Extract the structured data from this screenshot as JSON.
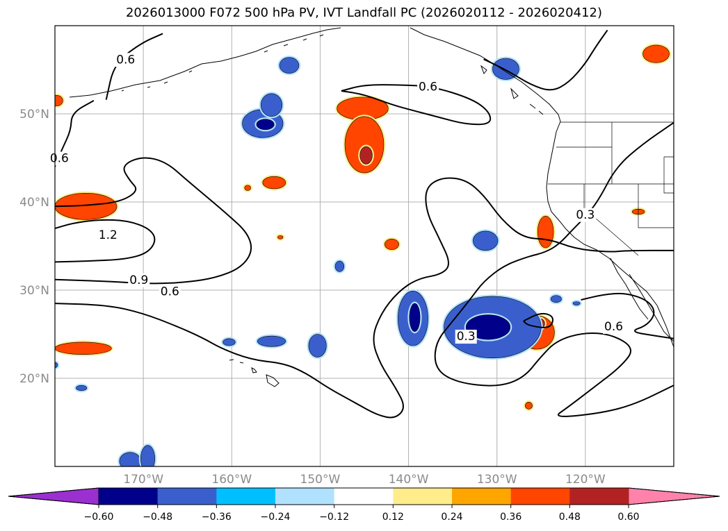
{
  "chart_data": {
    "type": "heatmap",
    "title": "2026013000 F072 500 hPa PV, IVT Landfall PC (2026020112 - 2026020412)",
    "projection": "PlateCarree",
    "lon_range": [
      -180,
      -110
    ],
    "lat_range": [
      10,
      60
    ],
    "lat_ticks": [
      {
        "lat": 50,
        "label": "50°N"
      },
      {
        "lat": 40,
        "label": "40°N"
      },
      {
        "lat": 30,
        "label": "30°N"
      },
      {
        "lat": 20,
        "label": "20°N"
      }
    ],
    "lon_ticks": [
      {
        "lon": -170,
        "label": "170°W"
      },
      {
        "lon": -160,
        "label": "160°W"
      },
      {
        "lon": -150,
        "label": "150°W"
      },
      {
        "lon": -140,
        "label": "140°W"
      },
      {
        "lon": -130,
        "label": "130°W"
      },
      {
        "lon": -120,
        "label": "120°W"
      }
    ],
    "grid": true,
    "colorbar": {
      "orientation": "horizontal",
      "extend": "both",
      "ticks": [
        "−0.60",
        "−0.48",
        "−0.36",
        "−0.24",
        "−0.12",
        "0.12",
        "0.24",
        "0.36",
        "0.48",
        "0.60"
      ],
      "colors": [
        "#9b30d0",
        "#00008b",
        "#3a5fcd",
        "#00bfff",
        "#b0e2ff",
        "#ffffff",
        "#ffec8b",
        "#ffa500",
        "#ff4500",
        "#b22222",
        "#ff82ab"
      ]
    },
    "contour_labels": [
      {
        "text": "0.6",
        "lon": -172.0,
        "lat": 56.2
      },
      {
        "text": "0.6",
        "lon": -179.5,
        "lat": 45.0
      },
      {
        "text": "1.2",
        "lon": -174.0,
        "lat": 36.3
      },
      {
        "text": "0.9",
        "lon": -170.5,
        "lat": 31.2
      },
      {
        "text": "0.6",
        "lon": -167.0,
        "lat": 29.9
      },
      {
        "text": "0.6",
        "lon": -137.8,
        "lat": 53.1
      },
      {
        "text": "0.3",
        "lon": -120.0,
        "lat": 38.6
      },
      {
        "text": "0.3",
        "lon": -133.5,
        "lat": 24.8
      },
      {
        "text": "0.6",
        "lon": -116.8,
        "lat": 25.9
      }
    ],
    "pv_contours": [
      {
        "level": 0.6,
        "points": [
          [
            -174.2,
            51.6
          ],
          [
            -173.3,
            55.7
          ],
          [
            -170.3,
            58.0
          ],
          [
            -167.8,
            59.1
          ]
        ]
      },
      {
        "level": 0.6,
        "points": [
          [
            -180.0,
            44.0
          ],
          [
            -179.2,
            46.0
          ],
          [
            -178.2,
            48.1
          ],
          [
            -178.1,
            50.1
          ],
          [
            -175.6,
            51.5
          ]
        ]
      },
      {
        "level": 0.6,
        "points": [
          [
            -180.0,
            28.5
          ],
          [
            -174.0,
            28.3
          ],
          [
            -170.1,
            27.4
          ],
          [
            -166.2,
            25.9
          ],
          [
            -163.3,
            24.6
          ],
          [
            -161.2,
            23.4
          ],
          [
            -157.8,
            22.1
          ],
          [
            -154.1,
            21.7
          ],
          [
            -151.6,
            20.6
          ],
          [
            -149.1,
            18.9
          ],
          [
            -146.0,
            17.2
          ],
          [
            -143.5,
            15.8
          ],
          [
            -141.5,
            15.4
          ],
          [
            -140.3,
            16.7
          ],
          [
            -141.5,
            19.0
          ],
          [
            -143.2,
            21.6
          ],
          [
            -144.2,
            24.5
          ],
          [
            -143.1,
            27.4
          ],
          [
            -141.2,
            29.8
          ],
          [
            -139.0,
            31.3
          ],
          [
            -136.2,
            31.8
          ],
          [
            -135.2,
            33.0
          ],
          [
            -136.5,
            35.8
          ],
          [
            -138.0,
            38.9
          ],
          [
            -138.1,
            41.6
          ],
          [
            -136.3,
            42.8
          ],
          [
            -133.6,
            42.6
          ],
          [
            -131.5,
            40.8
          ],
          [
            -129.5,
            38.0
          ],
          [
            -127.0,
            35.9
          ],
          [
            -124.1,
            35.8
          ],
          [
            -121.2,
            34.7
          ],
          [
            -117.5,
            34.3
          ],
          [
            -115.0,
            34.5
          ],
          [
            -110.0,
            34.5
          ]
        ]
      },
      {
        "level": 0.9,
        "points": [
          [
            -180.0,
            31.2
          ],
          [
            -174.1,
            31.0
          ],
          [
            -169.0,
            30.7
          ],
          [
            -165.0,
            30.9
          ],
          [
            -161.8,
            31.4
          ],
          [
            -159.0,
            32.5
          ],
          [
            -157.6,
            34.4
          ],
          [
            -158.2,
            36.5
          ],
          [
            -160.5,
            38.6
          ],
          [
            -162.6,
            40.4
          ],
          [
            -165.1,
            42.5
          ],
          [
            -167.5,
            44.6
          ],
          [
            -170.2,
            45.2
          ],
          [
            -172.5,
            44.1
          ],
          [
            -171.6,
            42.5
          ],
          [
            -170.5,
            41.3
          ],
          [
            -172.6,
            40.0
          ],
          [
            -176.5,
            39.6
          ],
          [
            -180.0,
            39.5
          ]
        ]
      },
      {
        "level": 1.2,
        "points": [
          [
            -180.0,
            33.2
          ],
          [
            -176.0,
            33.3
          ],
          [
            -172.0,
            33.5
          ],
          [
            -169.5,
            34.2
          ],
          [
            -168.5,
            35.7
          ],
          [
            -169.3,
            37.0
          ],
          [
            -171.8,
            37.9
          ],
          [
            -175.0,
            38.0
          ],
          [
            -178.0,
            37.6
          ],
          [
            -180.0,
            37.0
          ]
        ]
      },
      {
        "level": 0.6,
        "points": [
          [
            -147.6,
            52.6
          ],
          [
            -145.0,
            53.3
          ],
          [
            -141.0,
            53.3
          ],
          [
            -137.3,
            53.1
          ],
          [
            -132.8,
            51.7
          ],
          [
            -130.8,
            50.2
          ],
          [
            -130.7,
            48.8
          ],
          [
            -133.5,
            48.8
          ],
          [
            -136.5,
            49.6
          ],
          [
            -139.2,
            50.3
          ],
          [
            -141.8,
            51.0
          ],
          [
            -145.0,
            52.2
          ],
          [
            -147.6,
            52.6
          ]
        ]
      },
      {
        "level": 0.6,
        "points": [
          [
            -131.5,
            56.2
          ],
          [
            -128.8,
            54.9
          ],
          [
            -126.2,
            53.3
          ],
          [
            -123.8,
            52.5
          ],
          [
            -121.8,
            53.6
          ],
          [
            -120.0,
            55.7
          ],
          [
            -118.9,
            57.5
          ],
          [
            -117.5,
            59.5
          ]
        ]
      },
      {
        "level": 0.3,
        "points": [
          [
            -110.0,
            49.0
          ],
          [
            -113.5,
            46.6
          ],
          [
            -116.5,
            44.0
          ],
          [
            -118.5,
            40.2
          ],
          [
            -120.0,
            38.3
          ],
          [
            -121.5,
            36.8
          ],
          [
            -123.0,
            35.2
          ],
          [
            -124.5,
            34.3
          ],
          [
            -126.5,
            33.8
          ],
          [
            -129.2,
            32.8
          ],
          [
            -131.5,
            31.0
          ],
          [
            -133.0,
            29.0
          ],
          [
            -135.0,
            26.5
          ],
          [
            -137.0,
            24.0
          ],
          [
            -137.0,
            21.0
          ],
          [
            -134.5,
            19.5
          ],
          [
            -130.0,
            19.0
          ],
          [
            -127.0,
            20.0
          ],
          [
            -125.0,
            22.5
          ],
          [
            -123.2,
            24.3
          ],
          [
            -120.2,
            25.2
          ],
          [
            -117.0,
            25.0
          ],
          [
            -114.4,
            23.4
          ],
          [
            -115.9,
            21.4
          ],
          [
            -119.0,
            19.0
          ],
          [
            -122.0,
            16.7
          ],
          [
            -123.7,
            15.5
          ],
          [
            -118.5,
            16.0
          ],
          [
            -114.5,
            17.0
          ],
          [
            -110.0,
            19.2
          ]
        ]
      },
      {
        "level": 0.6,
        "points": [
          [
            -127.0,
            26.5
          ],
          [
            -125.0,
            27.5
          ],
          [
            -123.5,
            27.0
          ],
          [
            -124.0,
            25.6
          ],
          [
            -126.5,
            26.0
          ],
          [
            -127.0,
            26.5
          ]
        ]
      },
      {
        "level": 0.6,
        "points": [
          [
            -120.5,
            28.9
          ],
          [
            -118.0,
            29.5
          ],
          [
            -115.5,
            29.7
          ],
          [
            -113.0,
            28.9
          ],
          [
            -112.0,
            27.5
          ],
          [
            -113.0,
            26.0
          ],
          [
            -115.0,
            25.3
          ],
          [
            -112.0,
            24.8
          ],
          [
            -110.0,
            24.5
          ]
        ]
      }
    ],
    "pv_anomalies": [
      {
        "lon": -176.5,
        "lat": 39.5,
        "rx": 3.5,
        "ry": 1.5,
        "value": 0.4
      },
      {
        "lon": -179.8,
        "lat": 51.5,
        "rx": 0.7,
        "ry": 0.6,
        "value": 0.4
      },
      {
        "lon": -176.8,
        "lat": 23.4,
        "rx": 3.2,
        "ry": 0.7,
        "value": 0.4
      },
      {
        "lon": -155.2,
        "lat": 42.2,
        "rx": 1.3,
        "ry": 0.7,
        "value": 0.4
      },
      {
        "lon": -158.2,
        "lat": 41.6,
        "rx": 0.35,
        "ry": 0.3,
        "value": 0.4
      },
      {
        "lon": -154.5,
        "lat": 36.0,
        "rx": 0.3,
        "ry": 0.2,
        "value": 0.4
      },
      {
        "lon": -145.2,
        "lat": 50.6,
        "rx": 2.9,
        "ry": 1.3,
        "value": 0.4
      },
      {
        "lon": -145.0,
        "lat": 46.5,
        "rx": 2.2,
        "ry": 3.2,
        "value": 0.4
      },
      {
        "lon": -144.8,
        "lat": 45.3,
        "rx": 0.7,
        "ry": 1.0,
        "value": 0.52
      },
      {
        "lon": -141.9,
        "lat": 35.2,
        "rx": 0.8,
        "ry": 0.6,
        "value": 0.4
      },
      {
        "lon": -124.5,
        "lat": 36.6,
        "rx": 0.9,
        "ry": 1.8,
        "value": 0.4
      },
      {
        "lon": -125.5,
        "lat": 25.2,
        "rx": 2.0,
        "ry": 1.9,
        "value": 0.4
      },
      {
        "lon": -125.2,
        "lat": 26.2,
        "rx": 0.6,
        "ry": 0.6,
        "value": 0.52
      },
      {
        "lon": -126.4,
        "lat": 16.9,
        "rx": 0.4,
        "ry": 0.4,
        "value": 0.4
      },
      {
        "lon": -112.0,
        "lat": 56.8,
        "rx": 1.5,
        "ry": 1.0,
        "value": 0.4
      },
      {
        "lon": -114.0,
        "lat": 38.9,
        "rx": 0.7,
        "ry": 0.3,
        "value": 0.4
      },
      {
        "lon": -156.5,
        "lat": 48.9,
        "rx": 2.3,
        "ry": 1.6,
        "value": -0.4
      },
      {
        "lon": -155.5,
        "lat": 51.0,
        "rx": 1.2,
        "ry": 1.3,
        "value": -0.4
      },
      {
        "lon": -156.2,
        "lat": 48.8,
        "rx": 1.0,
        "ry": 0.6,
        "value": -0.52
      },
      {
        "lon": -153.5,
        "lat": 55.5,
        "rx": 1.1,
        "ry": 0.9,
        "value": -0.4
      },
      {
        "lon": -180.0,
        "lat": 21.5,
        "rx": 0.3,
        "ry": 0.3,
        "value": -0.4
      },
      {
        "lon": -177.0,
        "lat": 18.9,
        "rx": 0.6,
        "ry": 0.3,
        "value": -0.4
      },
      {
        "lon": -160.3,
        "lat": 24.1,
        "rx": 0.7,
        "ry": 0.4,
        "value": -0.4
      },
      {
        "lon": -155.5,
        "lat": 24.2,
        "rx": 1.6,
        "ry": 0.6,
        "value": -0.4
      },
      {
        "lon": -150.3,
        "lat": 23.7,
        "rx": 1.0,
        "ry": 1.3,
        "value": -0.4
      },
      {
        "lon": -147.8,
        "lat": 32.7,
        "rx": 0.5,
        "ry": 0.6,
        "value": -0.4
      },
      {
        "lon": -139.5,
        "lat": 26.8,
        "rx": 1.7,
        "ry": 3.1,
        "value": -0.4
      },
      {
        "lon": -139.3,
        "lat": 26.9,
        "rx": 0.6,
        "ry": 1.6,
        "value": -0.52
      },
      {
        "lon": -131.3,
        "lat": 35.6,
        "rx": 1.4,
        "ry": 1.1,
        "value": -0.4
      },
      {
        "lon": -129.0,
        "lat": 55.1,
        "rx": 1.5,
        "ry": 1.2,
        "value": -0.4
      },
      {
        "lon": -130.5,
        "lat": 25.8,
        "rx": 5.5,
        "ry": 3.5,
        "value": -0.4
      },
      {
        "lon": -131.0,
        "lat": 25.8,
        "rx": 2.5,
        "ry": 1.4,
        "value": -0.52
      },
      {
        "lon": -123.3,
        "lat": 29.0,
        "rx": 0.6,
        "ry": 0.4,
        "value": -0.4
      },
      {
        "lon": -121.0,
        "lat": 28.5,
        "rx": 0.4,
        "ry": 0.2,
        "value": -0.4
      },
      {
        "lon": -171.5,
        "lat": 10.6,
        "rx": 1.2,
        "ry": 1.0,
        "value": -0.4
      },
      {
        "lon": -169.5,
        "lat": 10.9,
        "rx": 0.8,
        "ry": 1.5,
        "value": -0.4
      }
    ]
  }
}
